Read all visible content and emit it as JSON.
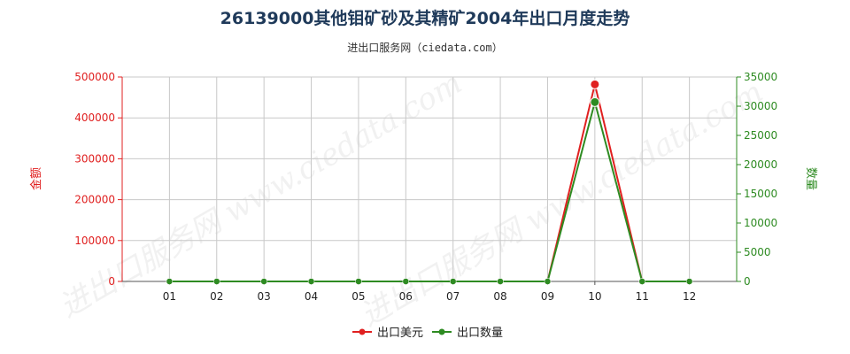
{
  "chart_data": {
    "type": "line",
    "title": "26139000其他钼矿砂及其精矿2004年出口月度走势",
    "subtitle": "进出口服务网（ciedata.com）",
    "categories": [
      "01",
      "02",
      "03",
      "04",
      "05",
      "06",
      "07",
      "08",
      "09",
      "10",
      "11",
      "12"
    ],
    "y_left": {
      "label": "金额",
      "range": [
        0,
        500000
      ],
      "ticks": [
        "0",
        "100000",
        "200000",
        "300000",
        "400000",
        "500000"
      ],
      "color": "#e02020"
    },
    "y_right": {
      "label": "数量",
      "range": [
        0,
        35000
      ],
      "ticks": [
        "0",
        "5000",
        "10000",
        "15000",
        "20000",
        "25000",
        "30000",
        "35000"
      ],
      "color": "#2e8b22"
    },
    "series": [
      {
        "name": "出口美元",
        "axis": "left",
        "color": "#e02020",
        "values": [
          0,
          0,
          0,
          0,
          0,
          0,
          0,
          0,
          0,
          482000,
          0,
          0
        ]
      },
      {
        "name": "出口数量",
        "axis": "right",
        "color": "#2e8b22",
        "values": [
          0,
          0,
          0,
          0,
          0,
          0,
          0,
          0,
          0,
          30700,
          0,
          0
        ]
      }
    ],
    "grid": true,
    "legend_position": "bottom-center",
    "watermark": "进出口服务网 www.ciedata.com"
  }
}
